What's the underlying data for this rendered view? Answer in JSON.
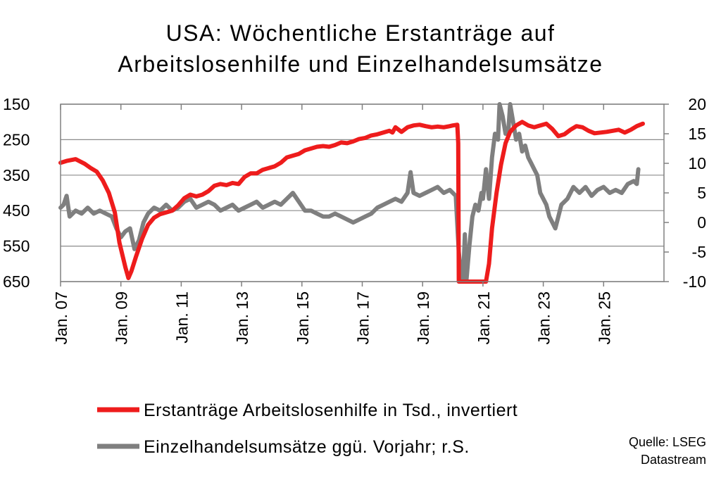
{
  "chart_data": {
    "type": "line",
    "title": [
      "USA: Wöchentliche Erstanträge auf",
      "Arbeitslosenhilfe und Einzelhandelsumsätze"
    ],
    "x_range": [
      2007.0,
      2027.0
    ],
    "x_ticks": [
      {
        "x": 2007,
        "label": "Jan. 07"
      },
      {
        "x": 2009,
        "label": "Jan. 09"
      },
      {
        "x": 2011,
        "label": "Jan. 11"
      },
      {
        "x": 2013,
        "label": "Jan. 13"
      },
      {
        "x": 2015,
        "label": "Jan. 15"
      },
      {
        "x": 2017,
        "label": "Jan. 17"
      },
      {
        "x": 2019,
        "label": "Jan. 19"
      },
      {
        "x": 2021,
        "label": "Jan. 21"
      },
      {
        "x": 2023,
        "label": "Jan. 23"
      },
      {
        "x": 2025,
        "label": "Jan. 25"
      }
    ],
    "y_left": {
      "ticks": [
        150,
        250,
        350,
        450,
        550,
        650
      ],
      "range": [
        150,
        650
      ],
      "inverted": true
    },
    "y_right": {
      "ticks": [
        20,
        15,
        10,
        5,
        0,
        -5,
        -10
      ],
      "range": [
        -10,
        20
      ]
    },
    "grid": true,
    "legend_position": "bottom",
    "series": [
      {
        "name": "Erstanträge Arbeitslosenhilfe in Tsd., invertiert",
        "axis": "left",
        "color": "#ee1c1c",
        "points": [
          [
            2007.0,
            315
          ],
          [
            2007.2,
            310
          ],
          [
            2007.5,
            305
          ],
          [
            2007.8,
            318
          ],
          [
            2008.0,
            330
          ],
          [
            2008.2,
            340
          ],
          [
            2008.4,
            365
          ],
          [
            2008.6,
            400
          ],
          [
            2008.8,
            455
          ],
          [
            2008.95,
            540
          ],
          [
            2009.15,
            610
          ],
          [
            2009.25,
            640
          ],
          [
            2009.35,
            620
          ],
          [
            2009.5,
            580
          ],
          [
            2009.7,
            530
          ],
          [
            2009.9,
            490
          ],
          [
            2010.1,
            470
          ],
          [
            2010.3,
            460
          ],
          [
            2010.5,
            455
          ],
          [
            2010.7,
            450
          ],
          [
            2010.9,
            435
          ],
          [
            2011.1,
            415
          ],
          [
            2011.3,
            405
          ],
          [
            2011.5,
            410
          ],
          [
            2011.7,
            405
          ],
          [
            2011.9,
            395
          ],
          [
            2012.1,
            380
          ],
          [
            2012.3,
            375
          ],
          [
            2012.5,
            378
          ],
          [
            2012.7,
            372
          ],
          [
            2012.9,
            375
          ],
          [
            2013.1,
            355
          ],
          [
            2013.3,
            345
          ],
          [
            2013.5,
            345
          ],
          [
            2013.7,
            335
          ],
          [
            2013.9,
            330
          ],
          [
            2014.1,
            325
          ],
          [
            2014.3,
            315
          ],
          [
            2014.5,
            300
          ],
          [
            2014.7,
            295
          ],
          [
            2014.9,
            290
          ],
          [
            2015.1,
            280
          ],
          [
            2015.3,
            275
          ],
          [
            2015.5,
            270
          ],
          [
            2015.7,
            268
          ],
          [
            2015.9,
            270
          ],
          [
            2016.1,
            265
          ],
          [
            2016.3,
            258
          ],
          [
            2016.5,
            260
          ],
          [
            2016.7,
            255
          ],
          [
            2016.9,
            248
          ],
          [
            2017.1,
            245
          ],
          [
            2017.3,
            238
          ],
          [
            2017.5,
            235
          ],
          [
            2017.7,
            230
          ],
          [
            2017.9,
            225
          ],
          [
            2018.0,
            230
          ],
          [
            2018.1,
            215
          ],
          [
            2018.3,
            228
          ],
          [
            2018.5,
            215
          ],
          [
            2018.7,
            210
          ],
          [
            2018.9,
            208
          ],
          [
            2019.1,
            212
          ],
          [
            2019.3,
            215
          ],
          [
            2019.5,
            213
          ],
          [
            2019.7,
            215
          ],
          [
            2019.9,
            212
          ],
          [
            2020.0,
            210
          ],
          [
            2020.15,
            208
          ],
          [
            2020.18,
            260
          ],
          [
            2020.2,
            650
          ],
          [
            2021.1,
            650
          ],
          [
            2021.2,
            600
          ],
          [
            2021.3,
            500
          ],
          [
            2021.45,
            400
          ],
          [
            2021.6,
            320
          ],
          [
            2021.75,
            260
          ],
          [
            2021.9,
            228
          ],
          [
            2022.1,
            210
          ],
          [
            2022.3,
            200
          ],
          [
            2022.5,
            210
          ],
          [
            2022.7,
            215
          ],
          [
            2022.9,
            210
          ],
          [
            2023.1,
            205
          ],
          [
            2023.3,
            220
          ],
          [
            2023.5,
            240
          ],
          [
            2023.7,
            235
          ],
          [
            2023.9,
            222
          ],
          [
            2024.1,
            212
          ],
          [
            2024.3,
            215
          ],
          [
            2024.5,
            225
          ],
          [
            2024.7,
            232
          ],
          [
            2024.9,
            230
          ],
          [
            2025.1,
            228
          ],
          [
            2025.3,
            225
          ],
          [
            2025.5,
            222
          ],
          [
            2025.7,
            230
          ],
          [
            2025.9,
            222
          ],
          [
            2026.1,
            212
          ],
          [
            2026.3,
            205
          ]
        ]
      },
      {
        "name": "Einzelhandelsumsätze ggü. Vorjahr; r.S.",
        "axis": "right",
        "color": "#7f7f7f",
        "points": [
          [
            2007.0,
            2.5
          ],
          [
            2007.1,
            3.0
          ],
          [
            2007.2,
            4.5
          ],
          [
            2007.3,
            1.0
          ],
          [
            2007.5,
            2.0
          ],
          [
            2007.7,
            1.5
          ],
          [
            2007.9,
            2.5
          ],
          [
            2008.1,
            1.5
          ],
          [
            2008.3,
            2.0
          ],
          [
            2008.5,
            1.5
          ],
          [
            2008.7,
            1.0
          ],
          [
            2008.85,
            -1.0
          ],
          [
            2009.0,
            -2.5
          ],
          [
            2009.15,
            -1.5
          ],
          [
            2009.3,
            -1.0
          ],
          [
            2009.45,
            -4.5
          ],
          [
            2009.6,
            -3.0
          ],
          [
            2009.75,
            0.0
          ],
          [
            2009.9,
            1.5
          ],
          [
            2010.1,
            2.5
          ],
          [
            2010.3,
            2.0
          ],
          [
            2010.5,
            3.0
          ],
          [
            2010.7,
            2.0
          ],
          [
            2010.9,
            2.5
          ],
          [
            2011.1,
            3.5
          ],
          [
            2011.3,
            4.0
          ],
          [
            2011.5,
            2.5
          ],
          [
            2011.7,
            3.0
          ],
          [
            2011.9,
            3.5
          ],
          [
            2012.1,
            3.0
          ],
          [
            2012.3,
            2.0
          ],
          [
            2012.5,
            2.5
          ],
          [
            2012.7,
            3.0
          ],
          [
            2012.9,
            2.0
          ],
          [
            2013.1,
            2.5
          ],
          [
            2013.3,
            3.0
          ],
          [
            2013.5,
            3.5
          ],
          [
            2013.7,
            2.5
          ],
          [
            2013.9,
            3.0
          ],
          [
            2014.1,
            3.5
          ],
          [
            2014.3,
            3.0
          ],
          [
            2014.5,
            4.0
          ],
          [
            2014.7,
            5.0
          ],
          [
            2014.9,
            3.5
          ],
          [
            2015.1,
            2.0
          ],
          [
            2015.3,
            2.0
          ],
          [
            2015.5,
            1.5
          ],
          [
            2015.7,
            1.0
          ],
          [
            2015.9,
            1.0
          ],
          [
            2016.1,
            1.5
          ],
          [
            2016.3,
            1.0
          ],
          [
            2016.5,
            0.5
          ],
          [
            2016.7,
            0.0
          ],
          [
            2016.9,
            0.5
          ],
          [
            2017.1,
            1.0
          ],
          [
            2017.3,
            1.5
          ],
          [
            2017.5,
            2.5
          ],
          [
            2017.7,
            3.0
          ],
          [
            2017.9,
            3.5
          ],
          [
            2018.1,
            4.0
          ],
          [
            2018.3,
            3.5
          ],
          [
            2018.5,
            5.0
          ],
          [
            2018.6,
            8.5
          ],
          [
            2018.7,
            5.0
          ],
          [
            2018.9,
            4.5
          ],
          [
            2019.1,
            5.0
          ],
          [
            2019.3,
            5.5
          ],
          [
            2019.5,
            6.0
          ],
          [
            2019.7,
            5.0
          ],
          [
            2019.9,
            5.5
          ],
          [
            2020.0,
            5.0
          ],
          [
            2020.1,
            4.5
          ],
          [
            2020.2,
            -5.0
          ],
          [
            2020.3,
            -10.0
          ],
          [
            2020.35,
            -9.0
          ],
          [
            2020.4,
            -2.0
          ],
          [
            2020.45,
            -10.0
          ],
          [
            2020.55,
            -4.0
          ],
          [
            2020.65,
            1.0
          ],
          [
            2020.75,
            3.0
          ],
          [
            2020.85,
            2.0
          ],
          [
            2020.95,
            5.0
          ],
          [
            2021.0,
            4.0
          ],
          [
            2021.1,
            9.0
          ],
          [
            2021.2,
            4.0
          ],
          [
            2021.3,
            11.0
          ],
          [
            2021.4,
            15.0
          ],
          [
            2021.5,
            14.0
          ],
          [
            2021.55,
            20.0
          ],
          [
            2021.65,
            18.0
          ],
          [
            2021.75,
            15.0
          ],
          [
            2021.85,
            16.0
          ],
          [
            2021.9,
            20.0
          ],
          [
            2022.0,
            17.0
          ],
          [
            2022.1,
            14.0
          ],
          [
            2022.2,
            15.0
          ],
          [
            2022.3,
            12.0
          ],
          [
            2022.4,
            13.0
          ],
          [
            2022.5,
            11.0
          ],
          [
            2022.6,
            10.0
          ],
          [
            2022.7,
            9.0
          ],
          [
            2022.8,
            8.0
          ],
          [
            2022.9,
            5.0
          ],
          [
            2023.1,
            3.0
          ],
          [
            2023.2,
            1.0
          ],
          [
            2023.3,
            0.0
          ],
          [
            2023.4,
            -1.0
          ],
          [
            2023.5,
            1.0
          ],
          [
            2023.6,
            3.0
          ],
          [
            2023.8,
            4.0
          ],
          [
            2024.0,
            6.0
          ],
          [
            2024.2,
            5.0
          ],
          [
            2024.4,
            6.0
          ],
          [
            2024.6,
            4.5
          ],
          [
            2024.8,
            5.5
          ],
          [
            2025.0,
            6.0
          ],
          [
            2025.2,
            5.0
          ],
          [
            2025.4,
            5.5
          ],
          [
            2025.6,
            5.0
          ],
          [
            2025.8,
            6.5
          ],
          [
            2026.0,
            7.0
          ],
          [
            2026.1,
            6.5
          ],
          [
            2026.15,
            9.0
          ]
        ]
      }
    ]
  },
  "source": [
    "Quelle: LSEG",
    "Datastream"
  ]
}
